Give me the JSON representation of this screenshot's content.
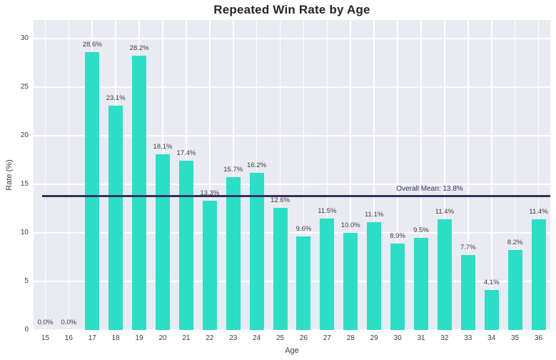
{
  "chart_data": {
    "type": "bar",
    "title": "Repeated Win Rate by Age",
    "xlabel": "Age",
    "ylabel": "Rate (%)",
    "categories": [
      "15",
      "16",
      "17",
      "18",
      "19",
      "20",
      "21",
      "22",
      "23",
      "24",
      "25",
      "26",
      "27",
      "28",
      "29",
      "30",
      "31",
      "32",
      "33",
      "34",
      "35",
      "36"
    ],
    "values": [
      0.0,
      0.0,
      28.6,
      23.1,
      28.2,
      18.1,
      17.4,
      13.3,
      15.7,
      16.2,
      12.6,
      9.6,
      11.5,
      10.0,
      11.1,
      8.9,
      9.5,
      11.4,
      7.7,
      4.1,
      8.2,
      11.4
    ],
    "bar_labels": [
      "0.0%",
      "0.0%",
      "28.6%",
      "23.1%",
      "28.2%",
      "18.1%",
      "17.4%",
      "13.3%",
      "15.7%",
      "16.2%",
      "12.6%",
      "9.6%",
      "11.5%",
      "10.0%",
      "11.1%",
      "8.9%",
      "9.5%",
      "11.4%",
      "7.7%",
      "4.1%",
      "8.2%",
      "11.4%"
    ],
    "yticks": [
      0,
      5,
      10,
      15,
      20,
      25,
      30
    ],
    "ylim": [
      0,
      31.9
    ],
    "grid": true,
    "legend_position": "none",
    "mean_line": {
      "value": 13.8,
      "label": "Overall Mean: 13.8%"
    },
    "colors": {
      "bar": "#2bdfc7",
      "plot_bg": "#eaeaf2",
      "grid": "#ffffff",
      "mean": "#363060",
      "tick_text": "#3d3d3d",
      "title_text": "#262626"
    }
  }
}
